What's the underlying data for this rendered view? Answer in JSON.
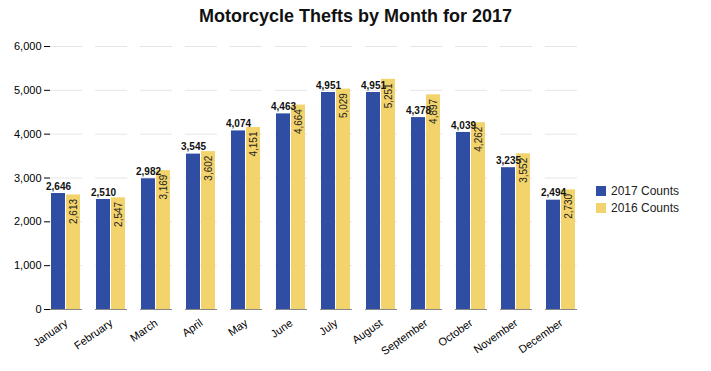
{
  "chart_data": {
    "type": "bar",
    "title": "Motorcycle Thefts by Month for 2017",
    "categories": [
      "January",
      "February",
      "March",
      "April",
      "May",
      "June",
      "July",
      "August",
      "September",
      "October",
      "November",
      "December"
    ],
    "series": [
      {
        "name": "2017 Counts",
        "color": "#2f4ea3",
        "values": [
          2646,
          2510,
          2982,
          3545,
          4074,
          4463,
          4951,
          4951,
          4378,
          4039,
          3235,
          2494
        ],
        "value_labels": [
          "2,646",
          "2,510",
          "2,982",
          "3,545",
          "4,074",
          "4,463",
          "4,951",
          "4,951",
          "4,378",
          "4,039",
          "3,235",
          "2,494"
        ]
      },
      {
        "name": "2016 Counts",
        "color": "#f3d36b",
        "values": [
          2613,
          2547,
          3169,
          3602,
          4151,
          4664,
          5029,
          5251,
          4897,
          4262,
          3552,
          2730
        ],
        "value_labels": [
          "2,613",
          "2,547",
          "3,169",
          "3,602",
          "4,151",
          "4,664",
          "5,029",
          "5,251",
          "4,897",
          "4,262",
          "3,552",
          "2,730"
        ]
      }
    ],
    "ylim": [
      0,
      6000
    ],
    "yticks": [
      0,
      {
        "value": 1000,
        "label": "1,000"
      },
      {
        "value": 2000,
        "label": "2,000"
      },
      {
        "value": 3000,
        "label": "3,000"
      },
      {
        "value": 4000,
        "label": "4,000"
      },
      {
        "value": 5000,
        "label": "5,000"
      },
      {
        "value": 6000,
        "label": "6,000"
      }
    ],
    "grid": true,
    "legend": "right",
    "data_labels": true
  }
}
